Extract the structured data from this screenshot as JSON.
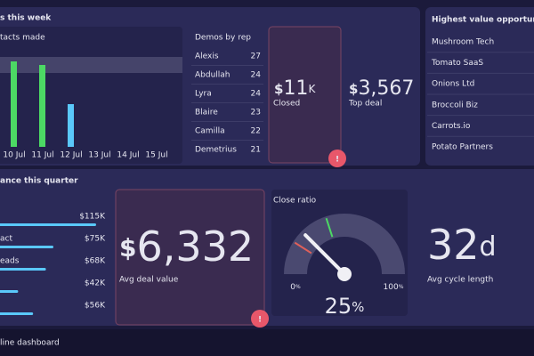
{
  "week": {
    "title": "s this week",
    "chart": {
      "title": "tacts made",
      "categories": [
        "10 Jul",
        "11 Jul",
        "12 Jul",
        "13 Jul",
        "14 Jul",
        "15 Jul"
      ],
      "values": [
        24,
        23,
        12,
        null,
        null,
        null
      ],
      "colors": [
        "#4cd964",
        "#4cd964",
        "#5ac8fa",
        "#5ac8fa",
        "#5ac8fa",
        "#5ac8fa"
      ]
    }
  },
  "demos": {
    "title": "Demos by rep",
    "rows": [
      [
        "Alexis",
        27
      ],
      [
        "Abdullah",
        24
      ],
      [
        "Lyra",
        24
      ],
      [
        "Blaire",
        23
      ],
      [
        "Camilla",
        22
      ],
      [
        "Demetrius",
        21
      ]
    ]
  },
  "closed": {
    "prefix": "$",
    "value": 11,
    "suffix": "K",
    "label": "Closed"
  },
  "top_deal": {
    "prefix": "$",
    "value": "3,567",
    "label": "Top deal"
  },
  "opportunities": {
    "title": "Highest value opportuni",
    "items": [
      "Mushroom Tech",
      "Tomato SaaS",
      "Onions Ltd",
      "Broccoli Biz",
      "Carrots.io",
      "Potato Partners"
    ]
  },
  "quarter": {
    "title": "ance this quarter",
    "bars": {
      "labels": [
        null,
        "act",
        "eads",
        null,
        null
      ],
      "values": [
        115,
        75,
        68,
        42,
        56
      ],
      "value_labels": [
        "$115K",
        "$75K",
        "$68K",
        "$42K",
        "$56K"
      ],
      "color": "#5ac8fa"
    }
  },
  "avg_deal": {
    "prefix": "$",
    "value": "6,332",
    "label": "Avg deal value"
  },
  "close_ratio": {
    "title": "Close ratio",
    "min": 0,
    "max": 100,
    "value": 25,
    "unit": "%",
    "markers": [
      {
        "value": 18,
        "color": "#e0605a"
      },
      {
        "value": 40,
        "color": "#4cd964"
      }
    ]
  },
  "cycle": {
    "value": 32,
    "suffix": "d",
    "label": "Avg cycle length"
  },
  "alert_icon": "!",
  "footer": "line dashboard"
}
